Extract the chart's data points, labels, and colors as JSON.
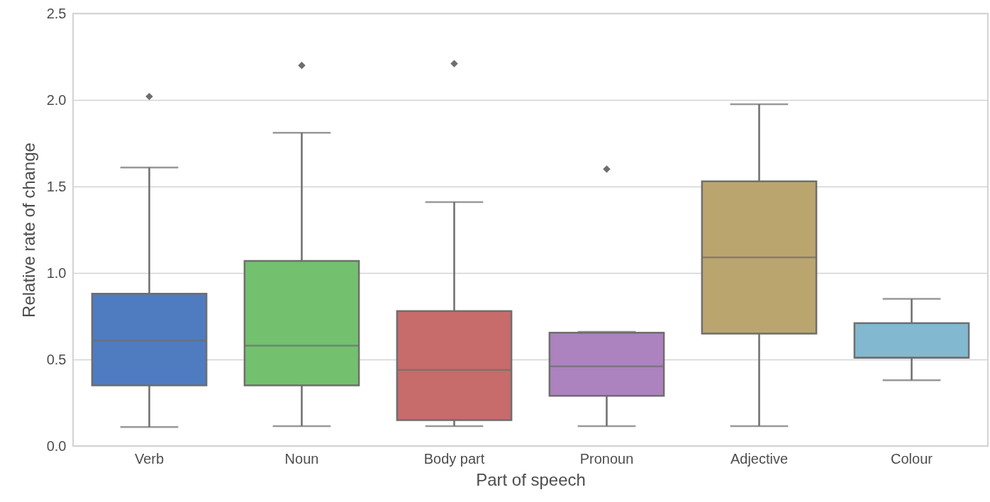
{
  "chart_data": {
    "type": "box",
    "xlabel": "Part of speech",
    "ylabel": "Relative rate of change",
    "categories": [
      "Verb",
      "Noun",
      "Body part",
      "Pronoun",
      "Adjective",
      "Colour"
    ],
    "boxes": [
      {
        "low": 0.11,
        "q1": 0.35,
        "median": 0.61,
        "q3": 0.88,
        "high": 1.61,
        "outliers": [
          2.02
        ]
      },
      {
        "low": 0.115,
        "q1": 0.35,
        "median": 0.58,
        "q3": 1.07,
        "high": 1.81,
        "outliers": [
          2.2
        ]
      },
      {
        "low": 0.115,
        "q1": 0.15,
        "median": 0.44,
        "q3": 0.78,
        "high": 1.41,
        "outliers": [
          2.21
        ]
      },
      {
        "low": 0.115,
        "q1": 0.29,
        "median": 0.46,
        "q3": 0.655,
        "high": 0.66,
        "outliers": [
          1.6
        ]
      },
      {
        "low": 0.115,
        "q1": 0.65,
        "median": 1.09,
        "q3": 1.53,
        "high": 1.975
      },
      {
        "low": 0.38,
        "q1": 0.51,
        "median": 0.51,
        "q3": 0.71,
        "high": 0.85
      }
    ],
    "colors": [
      "#4f7bc1",
      "#73c06f",
      "#c76b6b",
      "#ac82bf",
      "#bba56f",
      "#82b8d0"
    ],
    "ylim": [
      0,
      2.5
    ],
    "yticks": [
      {
        "value": 0,
        "label": "0.0"
      },
      0.5,
      {
        "value": 1,
        "label": "1.0"
      },
      1.5,
      {
        "value": 2,
        "label": "2.0"
      },
      2.5
    ],
    "grid": "y",
    "marker": "diamond"
  }
}
